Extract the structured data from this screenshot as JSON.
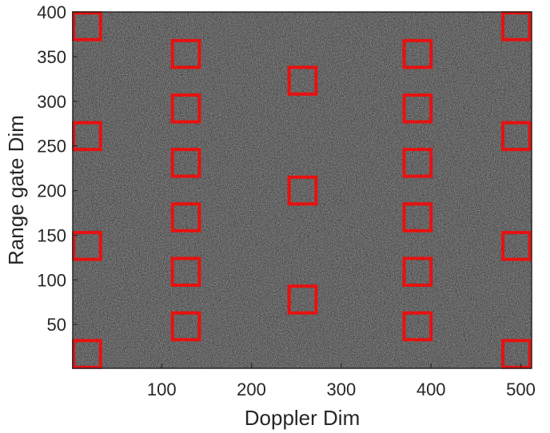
{
  "chart_data": {
    "type": "heatmap",
    "title": "",
    "xlabel": "Doppler Dim",
    "ylabel": "Range gate Dim",
    "xlim": [
      1,
      512
    ],
    "ylim": [
      1,
      400
    ],
    "x_ticks": [
      100,
      200,
      300,
      400,
      500
    ],
    "y_ticks": [
      50,
      100,
      150,
      200,
      250,
      300,
      350,
      400
    ],
    "x_tick_labels": [
      "100",
      "200",
      "300",
      "400",
      "500"
    ],
    "y_tick_labels": [
      "50",
      "100",
      "150",
      "200",
      "250",
      "300",
      "350",
      "400"
    ],
    "background": "random noise intensity (grayscale)",
    "box_color": "#e8110f",
    "box_size": [
      30,
      30
    ],
    "targets": [
      {
        "x": 17,
        "y": 384
      },
      {
        "x": 17,
        "y": 261
      },
      {
        "x": 17,
        "y": 138
      },
      {
        "x": 17,
        "y": 17
      },
      {
        "x": 127,
        "y": 353
      },
      {
        "x": 127,
        "y": 292
      },
      {
        "x": 127,
        "y": 231
      },
      {
        "x": 127,
        "y": 170
      },
      {
        "x": 127,
        "y": 109
      },
      {
        "x": 127,
        "y": 48
      },
      {
        "x": 257,
        "y": 323
      },
      {
        "x": 257,
        "y": 200
      },
      {
        "x": 257,
        "y": 78
      },
      {
        "x": 385,
        "y": 353
      },
      {
        "x": 385,
        "y": 292
      },
      {
        "x": 385,
        "y": 231
      },
      {
        "x": 385,
        "y": 170
      },
      {
        "x": 385,
        "y": 109
      },
      {
        "x": 385,
        "y": 48
      },
      {
        "x": 495,
        "y": 384
      },
      {
        "x": 495,
        "y": 261
      },
      {
        "x": 495,
        "y": 138
      },
      {
        "x": 495,
        "y": 17
      }
    ]
  }
}
